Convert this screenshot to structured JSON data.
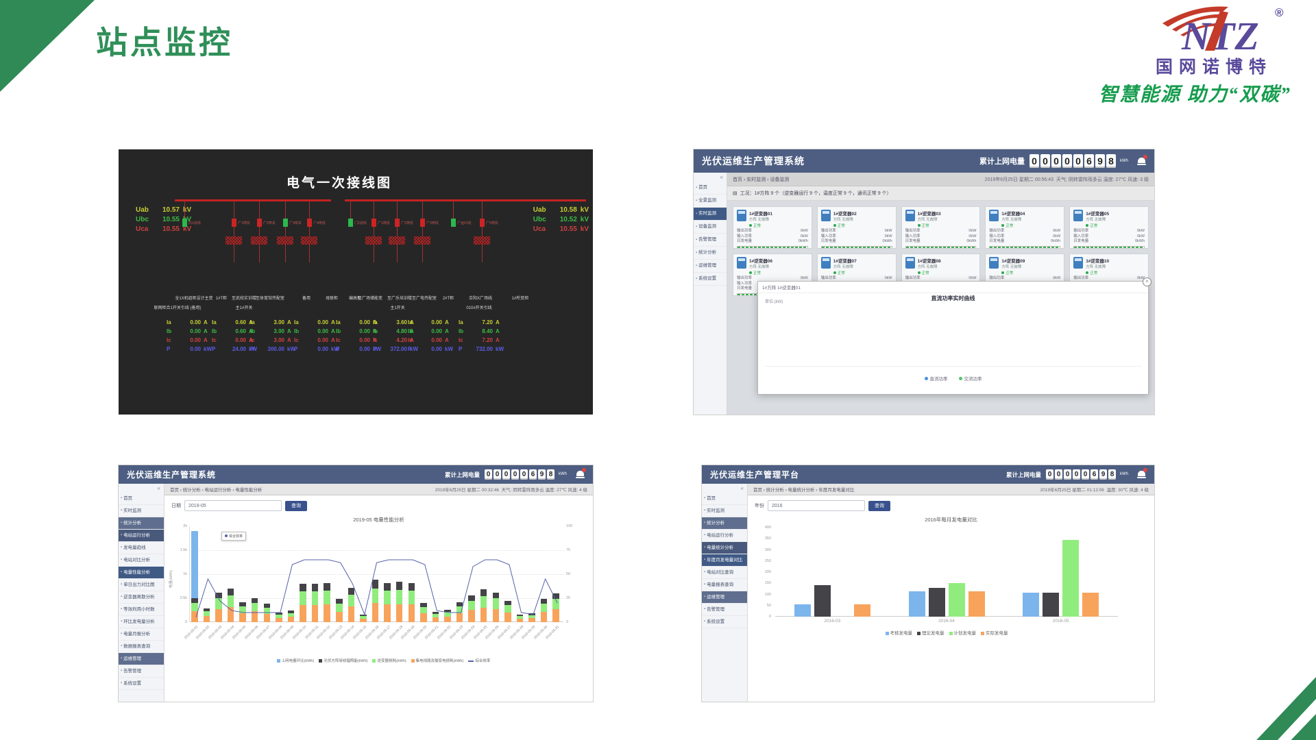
{
  "slide": {
    "title": "站点监控"
  },
  "logo": {
    "company": "国网诺博特",
    "tagline": "智慧能源 助力“双碳”",
    "reg": "®",
    "purple": "#5a4a9c",
    "red": "#c43b2a",
    "green": "#169c4e"
  },
  "counter": {
    "label": "累计上网电量",
    "digits": "00000698",
    "unit": "kWh"
  },
  "wiring": {
    "title": "电气一次接线图",
    "left_voltages": [
      [
        "Uab",
        "10.57",
        "kV"
      ],
      [
        "Ubc",
        "10.55",
        "kV"
      ],
      [
        "Uca",
        "10.55",
        "kV"
      ]
    ],
    "right_voltages": [
      [
        "Uab",
        "10.58",
        "kV"
      ],
      [
        "Ubc",
        "10.52",
        "kV"
      ],
      [
        "Uca",
        "10.55",
        "kV"
      ]
    ],
    "feeders": [
      {
        "x": 96,
        "c": "g",
        "label": "内1进线",
        "tr": 0
      },
      {
        "x": 168,
        "c": "r",
        "label": "广1停找",
        "tr": 1
      },
      {
        "x": 205,
        "c": "r",
        "label": "广2停关",
        "tr": 1
      },
      {
        "x": 243,
        "c": "g",
        "label": "广3停关",
        "tr": 1
      },
      {
        "x": 278,
        "c": "r",
        "label": "广4停找",
        "tr": 1
      },
      {
        "x": 338,
        "c": "g",
        "label": "门2进线",
        "tr": 0
      },
      {
        "x": 372,
        "c": "r",
        "label": "广1停找",
        "tr": 1
      },
      {
        "x": 406,
        "c": "r",
        "label": "广2停找",
        "tr": 1
      },
      {
        "x": 443,
        "c": "r",
        "label": "广3停找",
        "tr": 1
      },
      {
        "x": 488,
        "c": "g",
        "label": "广运01线",
        "tr": 0
      },
      {
        "x": 530,
        "c": "r",
        "label": "广5停找",
        "tr": 1
      }
    ],
    "group_labels": [
      {
        "x": 110,
        "t": "全1X机组柜设计主变"
      },
      {
        "x": 150,
        "t": "1#T柜"
      },
      {
        "x": 183,
        "t": "至武校实训楼"
      },
      {
        "x": 221,
        "t": "至体育馆传配室"
      },
      {
        "x": 274,
        "t": "备用"
      },
      {
        "x": 311,
        "t": "母联柜"
      },
      {
        "x": 345,
        "t": "编高柜"
      },
      {
        "x": 367,
        "t": "至广场储能变"
      },
      {
        "x": 410,
        "t": "至广乐培训楼"
      },
      {
        "x": 446,
        "t": "至广电传配室"
      },
      {
        "x": 481,
        "t": "2#T柜"
      },
      {
        "x": 528,
        "t": "合阳X广场线"
      },
      {
        "x": 586,
        "t": "1#所变柜"
      }
    ],
    "sub_labels": [
      {
        "x": 86,
        "t": "联网柜合1开关引线 (备用)"
      },
      {
        "x": 183,
        "t": "主1#开关"
      },
      {
        "x": 407,
        "t": "主1开关"
      },
      {
        "x": 526,
        "t": "010#开关引线"
      }
    ],
    "row_names": [
      "Ia",
      "Ib",
      "Ic",
      "P"
    ],
    "row_units": [
      "A",
      "A",
      "A",
      "kW"
    ],
    "columns": [
      {
        "x": 105,
        "v": [
          "0.00",
          "0.00",
          "0.00",
          "0.00"
        ]
      },
      {
        "x": 171,
        "v": [
          "0.60",
          "0.60",
          "0.00",
          "24.00"
        ]
      },
      {
        "x": 227,
        "v": [
          "3.00",
          "3.00",
          "3.00",
          "300.00"
        ]
      },
      {
        "x": 291,
        "v": [
          "0.00",
          "0.00",
          "0.00",
          "0.00"
        ]
      },
      {
        "x": 352,
        "v": [
          "0.00",
          "0.00",
          "0.00",
          "0.00"
        ]
      },
      {
        "x": 406,
        "v": [
          "3.60",
          "4.80",
          "4.20",
          "372.00"
        ]
      },
      {
        "x": 457,
        "v": [
          "0.00",
          "0.00",
          "0.00",
          "0.00"
        ]
      },
      {
        "x": 531,
        "v": [
          "7.20",
          "8.40",
          "7.20",
          "732.00"
        ]
      }
    ]
  },
  "app1": {
    "title": "光伏运维生产管理系统",
    "collapse": "«",
    "breadcrumb": "首页 › 实时监测 › 设备监测",
    "datetime": "2019年6月25日 星期二 00:56:43",
    "weather": "天气: 阴转雷阵雨多云  温度: 27℃  风速: 3 级",
    "notice_icon": "▤",
    "notice": "工况：1#方阵 9 个（逆变器运行 9 个，温度正常 9 个，通讯正常 9 个）",
    "sidebar": [
      {
        "t": "首页",
        "a": 0
      },
      {
        "t": "全景监测",
        "a": 0
      },
      {
        "t": "实时监测",
        "a": 1
      },
      {
        "t": "设备监测",
        "a": 0
      },
      {
        "t": "告警管理",
        "a": 0
      },
      {
        "t": "统计分析",
        "a": 0
      },
      {
        "t": "运维管理",
        "a": 0
      },
      {
        "t": "系统设置",
        "a": 0
      }
    ],
    "cards": {
      "names": [
        "1#逆变器01",
        "1#逆变器02",
        "1#逆变器03",
        "1#逆变器04",
        "1#逆变器05",
        "1#逆变器06",
        "1#逆变器07",
        "1#逆变器08",
        "1#逆变器09",
        "1#逆变器10"
      ],
      "sub": "方阵 无故障",
      "status": "正常",
      "metrics": [
        [
          "输出功率",
          "0kW"
        ],
        [
          "输入功率",
          "0kW"
        ],
        [
          "日发电量",
          "0kWh"
        ]
      ]
    },
    "modal": {
      "title": "1#方阵 1#逆变器01",
      "close_icon": "×",
      "chart_title": "直流功率实时曲线",
      "unit": "单位:(kW)",
      "legend": [
        "直流功率",
        "交流功率"
      ],
      "legend_colors": [
        "#4a90d9",
        "#52c46a"
      ]
    }
  },
  "app2": {
    "title": "光伏运维生产管理系统",
    "collapse": "«",
    "breadcrumb": "首页 › 统计分析 › 电站运行分析 › 电量性能分析",
    "datetime": "2019年6月25日 星期二 00:32:46",
    "weather": "天气: 阴转雷阵雨多云  温度: 27℃  风速: 4 级",
    "form": {
      "label": "日期",
      "value": "2019-05",
      "button": "查询"
    },
    "sidebar": [
      {
        "t": "首页",
        "s": "n"
      },
      {
        "t": "实时监测",
        "s": "n"
      },
      {
        "t": "统计分析",
        "s": "g"
      },
      {
        "t": "电站运行分析",
        "s": "g2"
      },
      {
        "t": "发电量趋线",
        "s": "n"
      },
      {
        "t": "电站对比分析",
        "s": "n"
      },
      {
        "t": "电量性能分析",
        "s": "a"
      },
      {
        "t": "单日出力对比图",
        "s": "n"
      },
      {
        "t": "逆变器离散分析",
        "s": "n"
      },
      {
        "t": "等效利用小时数",
        "s": "n"
      },
      {
        "t": "环比发电量分析",
        "s": "n"
      },
      {
        "t": "电量月报分析",
        "s": "n"
      },
      {
        "t": "数据报表查询",
        "s": "n"
      },
      {
        "t": "运维管理",
        "s": "g"
      },
      {
        "t": "告警管理",
        "s": "n"
      },
      {
        "t": "系统设置",
        "s": "n"
      }
    ],
    "ylabel": "电量(kWh)",
    "tooltip_label": "综合效率"
  },
  "app3": {
    "title": "光伏运维生产管理平台",
    "collapse": "«",
    "breadcrumb": "首页 › 统计分析 › 电量统计分析 › 年度月发电量对比",
    "datetime": "2019年6月25日 星期二 01:12:06",
    "weather": "温度: 30℃  风速: 4 级",
    "form": {
      "label": "年份",
      "value": "2016",
      "button": "查询"
    },
    "sidebar": [
      {
        "t": "首页",
        "s": "n"
      },
      {
        "t": "实时监测",
        "s": "n"
      },
      {
        "t": "统计分析",
        "s": "g"
      },
      {
        "t": "电站运行分析",
        "s": "n"
      },
      {
        "t": "电量统计分析",
        "s": "g2"
      },
      {
        "t": "年度月发电量对比",
        "s": "a"
      },
      {
        "t": "电站对比查询",
        "s": "n"
      },
      {
        "t": "电量报表查询",
        "s": "n"
      },
      {
        "t": "运维管理",
        "s": "g"
      },
      {
        "t": "告警管理",
        "s": "n"
      },
      {
        "t": "系统设置",
        "s": "n"
      }
    ]
  },
  "chart_data": [
    {
      "type": "bar",
      "title": "2019-05 电量性能分析",
      "x": [
        "2019-05-01",
        "2019-05-02",
        "2019-05-03",
        "2019-05-04",
        "2019-05-05",
        "2019-05-06",
        "2019-05-07",
        "2019-05-08",
        "2019-05-09",
        "2019-05-10",
        "2019-05-11",
        "2019-05-12",
        "2019-05-13",
        "2019-05-14",
        "2019-05-15",
        "2019-05-16",
        "2019-05-17",
        "2019-05-18",
        "2019-05-19",
        "2019-05-20",
        "2019-05-21",
        "2019-05-22",
        "2019-05-23",
        "2019-05-24",
        "2019-05-25",
        "2019-05-26",
        "2019-05-27",
        "2019-05-28",
        "2019-05-29",
        "2019-05-30",
        "2019-05-31"
      ],
      "left_ticks": [
        "2k",
        "1.5k",
        "1k",
        "0.5k",
        "0"
      ],
      "right_ticks": [
        "100",
        "75",
        "50",
        "25",
        "0"
      ],
      "ylim": [
        0,
        2000
      ],
      "series": [
        {
          "name": "上网电量环比(kWh)",
          "kind": "bar",
          "color": "#7cb5ec",
          "values": [
            1900,
            0,
            0,
            0,
            0,
            0,
            0,
            0,
            0,
            0,
            0,
            0,
            0,
            0,
            0,
            0,
            0,
            0,
            0,
            0,
            0,
            0,
            0,
            0,
            0,
            0,
            0,
            0,
            0,
            0,
            0
          ]
        },
        {
          "name": "光伏方阵吸收辐照能(kWh)",
          "kind": "stack",
          "color": "#434348",
          "values": [
            100,
            56,
            124,
            140,
            84,
            100,
            76,
            40,
            48,
            160,
            160,
            164,
            96,
            144,
            32,
            176,
            164,
            168,
            164,
            80,
            44,
            52,
            84,
            112,
            136,
            124,
            88,
            32,
            36,
            96,
            120
          ]
        },
        {
          "name": "逆变器损耗(kWh)",
          "kind": "stack",
          "color": "#90ed7d",
          "values": [
            175,
            98,
            217,
            245,
            147,
            175,
            133,
            70,
            84,
            280,
            280,
            287,
            168,
            252,
            56,
            308,
            287,
            294,
            287,
            140,
            77,
            91,
            147,
            196,
            238,
            217,
            154,
            56,
            63,
            168,
            210
          ]
        },
        {
          "name": "集电线路及输变电损耗(kWh)",
          "kind": "stack",
          "color": "#f7a35c",
          "values": [
            225,
            126,
            279,
            315,
            189,
            225,
            171,
            90,
            108,
            360,
            360,
            369,
            216,
            324,
            72,
            396,
            369,
            378,
            369,
            180,
            99,
            117,
            189,
            252,
            306,
            279,
            198,
            72,
            81,
            216,
            270
          ]
        },
        {
          "name": "综合效率",
          "kind": "line",
          "color": "#5560a8",
          "values": [
            5,
            45,
            22,
            12,
            10,
            10,
            10,
            10,
            60,
            65,
            65,
            65,
            62,
            40,
            8,
            62,
            65,
            65,
            65,
            60,
            12,
            10,
            10,
            58,
            65,
            65,
            60,
            10,
            8,
            45,
            20
          ]
        }
      ]
    },
    {
      "type": "bar",
      "title": "2016年每月发电量对比",
      "categories": [
        "2016-03",
        "2016-04",
        "2016-05"
      ],
      "yticks": [
        "400",
        "350",
        "300",
        "250",
        "200",
        "150",
        "100",
        "50",
        "0"
      ],
      "ylim": [
        0,
        400
      ],
      "series": [
        {
          "name": "考核发电量",
          "color": "#7cb5ec",
          "values": [
            56,
            115,
            109
          ]
        },
        {
          "name": "理论发电量",
          "color": "#434348",
          "values": [
            143,
            128,
            109
          ]
        },
        {
          "name": "计划发电量",
          "color": "#90ed7d",
          "values": [
            0,
            150,
            345
          ]
        },
        {
          "name": "实际发电量",
          "color": "#f7a35c",
          "values": [
            56,
            115,
            109
          ]
        }
      ]
    }
  ]
}
